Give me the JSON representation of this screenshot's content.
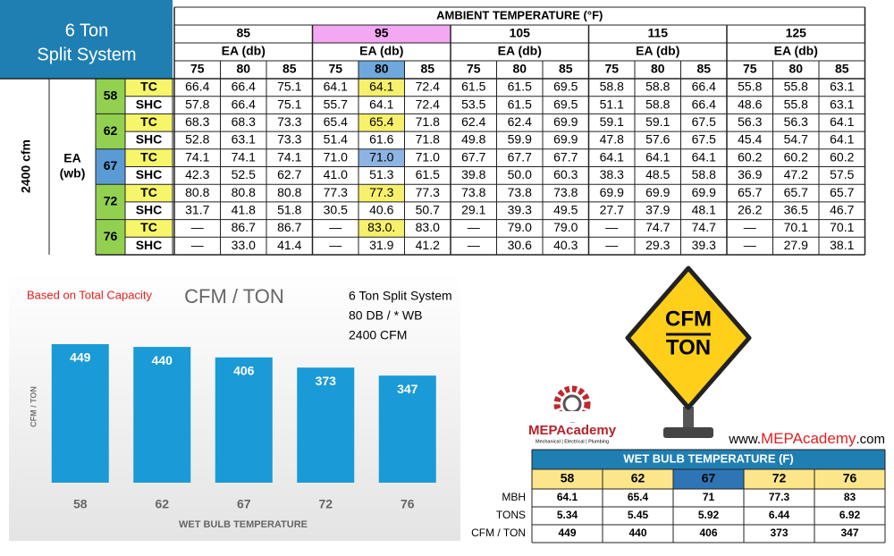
{
  "table": {
    "corner": [
      "6 Ton",
      "Split System"
    ],
    "header": "AMBIENT TEMPERATURE (°F)",
    "ambient": [
      "85",
      "95",
      "105",
      "115",
      "125"
    ],
    "ea_db": "EA (db)",
    "db_temps": [
      "75",
      "80",
      "85"
    ],
    "airflow": "2400 cfm",
    "ea_wb": [
      "EA",
      "(wb)"
    ],
    "groups": [
      {
        "wb": "58",
        "rows": [
          {
            "label": "TC",
            "cells": [
              "66.4",
              "66.4",
              "75.1",
              "64.1",
              "64.1",
              "72.4",
              "61.5",
              "61.5",
              "69.5",
              "58.8",
              "58.8",
              "66.4",
              "55.8",
              "55.8",
              "63.1"
            ]
          },
          {
            "label": "SHC",
            "cells": [
              "57.8",
              "66.4",
              "75.1",
              "55.7",
              "64.1",
              "72.4",
              "53.5",
              "61.5",
              "69.5",
              "51.1",
              "58.8",
              "66.4",
              "48.6",
              "55.8",
              "63.1"
            ]
          }
        ]
      },
      {
        "wb": "62",
        "rows": [
          {
            "label": "TC",
            "cells": [
              "68.3",
              "68.3",
              "73.3",
              "65.4",
              "65.4",
              "71.8",
              "62.4",
              "62.4",
              "69.9",
              "59.1",
              "59.1",
              "67.5",
              "56.3",
              "56.3",
              "64.1"
            ]
          },
          {
            "label": "SHC",
            "cells": [
              "52.8",
              "63.1",
              "73.3",
              "51.4",
              "61.6",
              "71.8",
              "49.8",
              "59.9",
              "69.9",
              "47.8",
              "57.6",
              "67.5",
              "45.4",
              "54.7",
              "64.1"
            ]
          }
        ]
      },
      {
        "wb": "67",
        "rows": [
          {
            "label": "TC",
            "cells": [
              "74.1",
              "74.1",
              "74.1",
              "71.0",
              "71.0",
              "71.0",
              "67.7",
              "67.7",
              "67.7",
              "64.1",
              "64.1",
              "64.1",
              "60.2",
              "60.2",
              "60.2"
            ]
          },
          {
            "label": "SHC",
            "cells": [
              "42.3",
              "52.5",
              "62.7",
              "41.0",
              "51.3",
              "61.5",
              "39.8",
              "50.0",
              "60.3",
              "38.3",
              "48.5",
              "58.8",
              "36.9",
              "47.2",
              "57.5"
            ]
          }
        ]
      },
      {
        "wb": "72",
        "rows": [
          {
            "label": "TC",
            "cells": [
              "80.8",
              "80.8",
              "80.8",
              "77.3",
              "77.3",
              "77.3",
              "73.8",
              "73.8",
              "73.8",
              "69.9",
              "69.9",
              "69.9",
              "65.7",
              "65.7",
              "65.7"
            ]
          },
          {
            "label": "SHC",
            "cells": [
              "31.7",
              "41.8",
              "51.8",
              "30.5",
              "40.6",
              "50.7",
              "29.1",
              "39.3",
              "49.5",
              "27.7",
              "37.9",
              "48.1",
              "26.2",
              "36.5",
              "46.7"
            ]
          }
        ]
      },
      {
        "wb": "76",
        "rows": [
          {
            "label": "TC",
            "cells": [
              "—",
              "86.7",
              "86.7",
              "—",
              "83.0.",
              "83.0",
              "—",
              "79.0",
              "79.0",
              "—",
              "74.7",
              "74.7",
              "—",
              "70.1",
              "70.1"
            ]
          },
          {
            "label": "SHC",
            "cells": [
              "—",
              "33.0",
              "41.4",
              "—",
              "31.9",
              "41.2",
              "—",
              "30.6",
              "40.3",
              "—",
              "29.3",
              "39.3",
              "—",
              "27.9",
              "38.1"
            ]
          }
        ]
      }
    ]
  },
  "chart_data": {
    "type": "bar",
    "subtitle": "Based on Total Capacity",
    "title": "CFM / TON",
    "notes": [
      "6 Ton Split System",
      "80 DB / * WB",
      "2400 CFM"
    ],
    "ylabel": "CFM / TON",
    "xlabel": "WET BULB TEMPERATURE",
    "categories": [
      "58",
      "62",
      "67",
      "72",
      "76"
    ],
    "values": [
      449,
      440,
      406,
      373,
      347
    ],
    "color": "#1a9ad6",
    "ylim": [
      0,
      500
    ]
  },
  "sign": [
    "CFM",
    "TON"
  ],
  "logo": {
    "name": "MEPAcademy",
    "tagline": "Mechanical | Electrical | Plumbing"
  },
  "url": [
    "www.",
    "MEPAcademy",
    ".com"
  ],
  "summary": {
    "header": "WET BULB TEMPERATURE (F)",
    "columns": [
      "58",
      "62",
      "67",
      "72",
      "76"
    ],
    "rows": [
      {
        "label": "MBH",
        "cells": [
          "64.1",
          "65.4",
          "71",
          "77.3",
          "83"
        ]
      },
      {
        "label": "TONS",
        "cells": [
          "5.34",
          "5.45",
          "5.92",
          "6.44",
          "6.92"
        ]
      },
      {
        "label": "CFM / TON",
        "cells": [
          "449",
          "440",
          "406",
          "373",
          "347"
        ]
      }
    ]
  }
}
